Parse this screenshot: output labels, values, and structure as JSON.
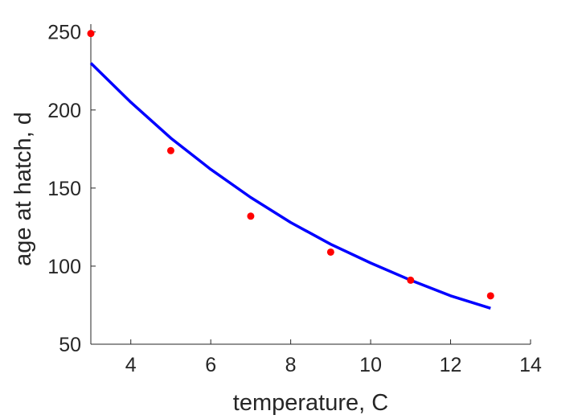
{
  "chart_data": {
    "type": "scatter",
    "xlabel": "temperature, C",
    "ylabel": "age at hatch, d",
    "xlim": [
      3,
      14
    ],
    "ylim": [
      50,
      255
    ],
    "x_ticks": [
      4,
      6,
      8,
      10,
      12,
      14
    ],
    "y_ticks": [
      50,
      100,
      150,
      200,
      250
    ],
    "grid": false,
    "series": [
      {
        "type": "scatter",
        "color": "#ff0000",
        "x": [
          3,
          5,
          7,
          9,
          11,
          13
        ],
        "y": [
          249,
          174,
          132,
          109,
          91,
          81
        ]
      },
      {
        "type": "line",
        "color": "#0000ff",
        "x": [
          3,
          4,
          5,
          6,
          7,
          8,
          9,
          10,
          11,
          12,
          13
        ],
        "y": [
          230,
          205,
          182,
          162,
          144,
          128,
          114,
          102,
          91,
          81,
          73
        ]
      }
    ]
  }
}
